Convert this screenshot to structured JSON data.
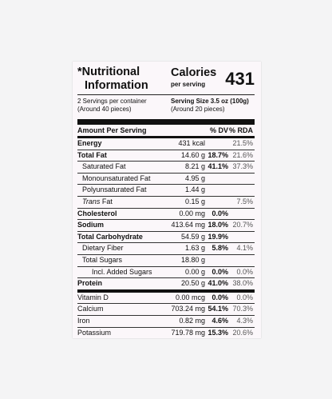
{
  "header": {
    "title_line1": "*Nutritional",
    "title_line2": "Information",
    "calories_label": "Calories",
    "per_serving": "per serving",
    "calories_value": "431"
  },
  "servings": {
    "left_line1": "2 Servings per container",
    "left_line2": "(Around 40 pieces)",
    "right_line1": "Serving Size 3.5 oz (100g)",
    "right_line2": "(Around 20 pieces)"
  },
  "table_header": {
    "name": "Amount Per Serving",
    "dv": "% DV",
    "rda": "% RDA"
  },
  "rows": [
    {
      "name": "Energy",
      "amount": "431 kcal",
      "dv": "",
      "rda": "21.5%",
      "bold": true,
      "indent": 0
    },
    {
      "name": "Total Fat",
      "amount": "14.60 g",
      "dv": "18.7%",
      "rda": "21.6%",
      "bold": true,
      "indent": 0
    },
    {
      "name": "Saturated Fat",
      "amount": "8.21 g",
      "dv": "41.1%",
      "rda": "37.3%",
      "bold": false,
      "indent": 1
    },
    {
      "name": "Monounsaturated Fat",
      "amount": "4.95 g",
      "dv": "",
      "rda": "",
      "bold": false,
      "indent": 1
    },
    {
      "name": "Polyunsaturated Fat",
      "amount": "1.44 g",
      "dv": "",
      "rda": "",
      "bold": false,
      "indent": 1
    },
    {
      "name": "Trans",
      "name_suffix": " Fat",
      "amount": "0.15 g",
      "dv": "",
      "rda": "7.5%",
      "bold": false,
      "indent": 1
    },
    {
      "name": "Cholesterol",
      "amount": "0.00 mg",
      "dv": "0.0%",
      "rda": "",
      "bold": true,
      "indent": 0
    },
    {
      "name": "Sodium",
      "amount": "413.64 mg",
      "dv": "18.0%",
      "rda": "20.7%",
      "bold": true,
      "indent": 0
    },
    {
      "name": "Total Carbohydrate",
      "amount": "54.59 g",
      "dv": "19.9%",
      "rda": "",
      "bold": true,
      "indent": 0
    },
    {
      "name": "Dietary Fiber",
      "amount": "1.63 g",
      "dv": "5.8%",
      "rda": "4.1%",
      "bold": false,
      "indent": 1
    },
    {
      "name": "Total Sugars",
      "amount": "18.80 g",
      "dv": "",
      "rda": "",
      "bold": false,
      "indent": 1
    },
    {
      "name": "Incl. Added Sugars",
      "amount": "0.00 g",
      "dv": "0.0%",
      "rda": "0.0%",
      "bold": false,
      "indent": 2
    },
    {
      "name": "Protein",
      "amount": "20.50 g",
      "dv": "41.0%",
      "rda": "38.0%",
      "bold": true,
      "indent": 0
    },
    {
      "name": "Vitamin D",
      "amount": "0.00 mcg",
      "dv": "0.0%",
      "rda": "0.0%",
      "bold": false,
      "indent": 0
    },
    {
      "name": "Calcium",
      "amount": "703.24 mg",
      "dv": "54.1%",
      "rda": "70.3%",
      "bold": false,
      "indent": 0
    },
    {
      "name": "Iron",
      "amount": "0.82 mg",
      "dv": "4.6%",
      "rda": "4.3%",
      "bold": false,
      "indent": 0
    },
    {
      "name": "Potassium",
      "amount": "719.78 mg",
      "dv": "15.3%",
      "rda": "20.6%",
      "bold": false,
      "indent": 0
    }
  ]
}
